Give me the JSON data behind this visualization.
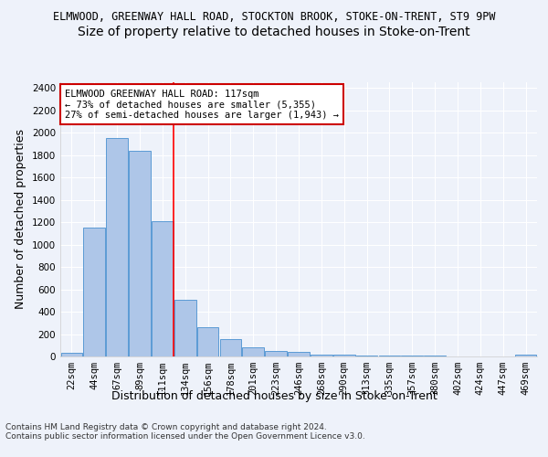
{
  "title1": "ELMWOOD, GREENWAY HALL ROAD, STOCKTON BROOK, STOKE-ON-TRENT, ST9 9PW",
  "title2": "Size of property relative to detached houses in Stoke-on-Trent",
  "xlabel": "Distribution of detached houses by size in Stoke-on-Trent",
  "ylabel": "Number of detached properties",
  "categories": [
    "22sqm",
    "44sqm",
    "67sqm",
    "89sqm",
    "111sqm",
    "134sqm",
    "156sqm",
    "178sqm",
    "201sqm",
    "223sqm",
    "246sqm",
    "268sqm",
    "290sqm",
    "313sqm",
    "335sqm",
    "357sqm",
    "380sqm",
    "402sqm",
    "424sqm",
    "447sqm",
    "469sqm"
  ],
  "values": [
    30,
    1150,
    1950,
    1840,
    1210,
    510,
    265,
    155,
    80,
    48,
    42,
    20,
    20,
    12,
    10,
    8,
    5,
    3,
    3,
    3,
    15
  ],
  "bar_color": "#aec6e8",
  "bar_edge_color": "#5b9bd5",
  "red_line_x": 4.5,
  "annotation_text": "ELMWOOD GREENWAY HALL ROAD: 117sqm\n← 73% of detached houses are smaller (5,355)\n27% of semi-detached houses are larger (1,943) →",
  "annotation_box_color": "#ffffff",
  "annotation_box_edge": "#cc0000",
  "ylim": [
    0,
    2450
  ],
  "yticks": [
    0,
    200,
    400,
    600,
    800,
    1000,
    1200,
    1400,
    1600,
    1800,
    2000,
    2200,
    2400
  ],
  "footer1": "Contains HM Land Registry data © Crown copyright and database right 2024.",
  "footer2": "Contains public sector information licensed under the Open Government Licence v3.0.",
  "background_color": "#eef2fa",
  "grid_color": "#ffffff",
  "title1_fontsize": 8.5,
  "title2_fontsize": 10,
  "axis_label_fontsize": 9,
  "tick_fontsize": 7.5,
  "annotation_fontsize": 7.5,
  "footer_fontsize": 6.5
}
